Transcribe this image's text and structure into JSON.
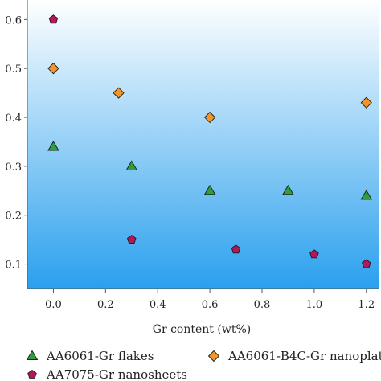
{
  "chart_data": {
    "type": "scatter",
    "title": "",
    "xlabel": "Gr content (wt%)",
    "ylabel": "",
    "xlim": [
      -0.1,
      1.25
    ],
    "ylim": [
      0.05,
      0.64
    ],
    "x_ticks": [
      "0.0",
      "0.2",
      "0.4",
      "0.6",
      "0.8",
      "1.0",
      "1.2"
    ],
    "y_ticks": [
      "0.1",
      "0.2",
      "0.3",
      "0.4",
      "0.5",
      "0.6"
    ],
    "grid": false,
    "legend_position": "bottom",
    "series": [
      {
        "name": "AA6061-Gr flakes",
        "marker": "triangle",
        "color": "#2e9e3e",
        "points": [
          [
            0.0,
            0.34
          ],
          [
            0.3,
            0.3
          ],
          [
            0.6,
            0.25
          ],
          [
            0.9,
            0.25
          ],
          [
            1.2,
            0.24
          ]
        ]
      },
      {
        "name": "AA6061-B4C-Gr nanoplat",
        "marker": "diamond",
        "color": "#f0962a",
        "points": [
          [
            0.0,
            0.5
          ],
          [
            0.25,
            0.45
          ],
          [
            0.6,
            0.4
          ],
          [
            1.2,
            0.43
          ]
        ]
      },
      {
        "name": "AA7075-Gr nanosheets",
        "marker": "pentagon",
        "color": "#b0185a",
        "points": [
          [
            0.0,
            0.6
          ],
          [
            0.3,
            0.15
          ],
          [
            0.7,
            0.13
          ],
          [
            1.0,
            0.12
          ],
          [
            1.2,
            0.1
          ]
        ]
      }
    ],
    "background_gradient": [
      "#ffffff",
      "#2aa0ee"
    ]
  }
}
